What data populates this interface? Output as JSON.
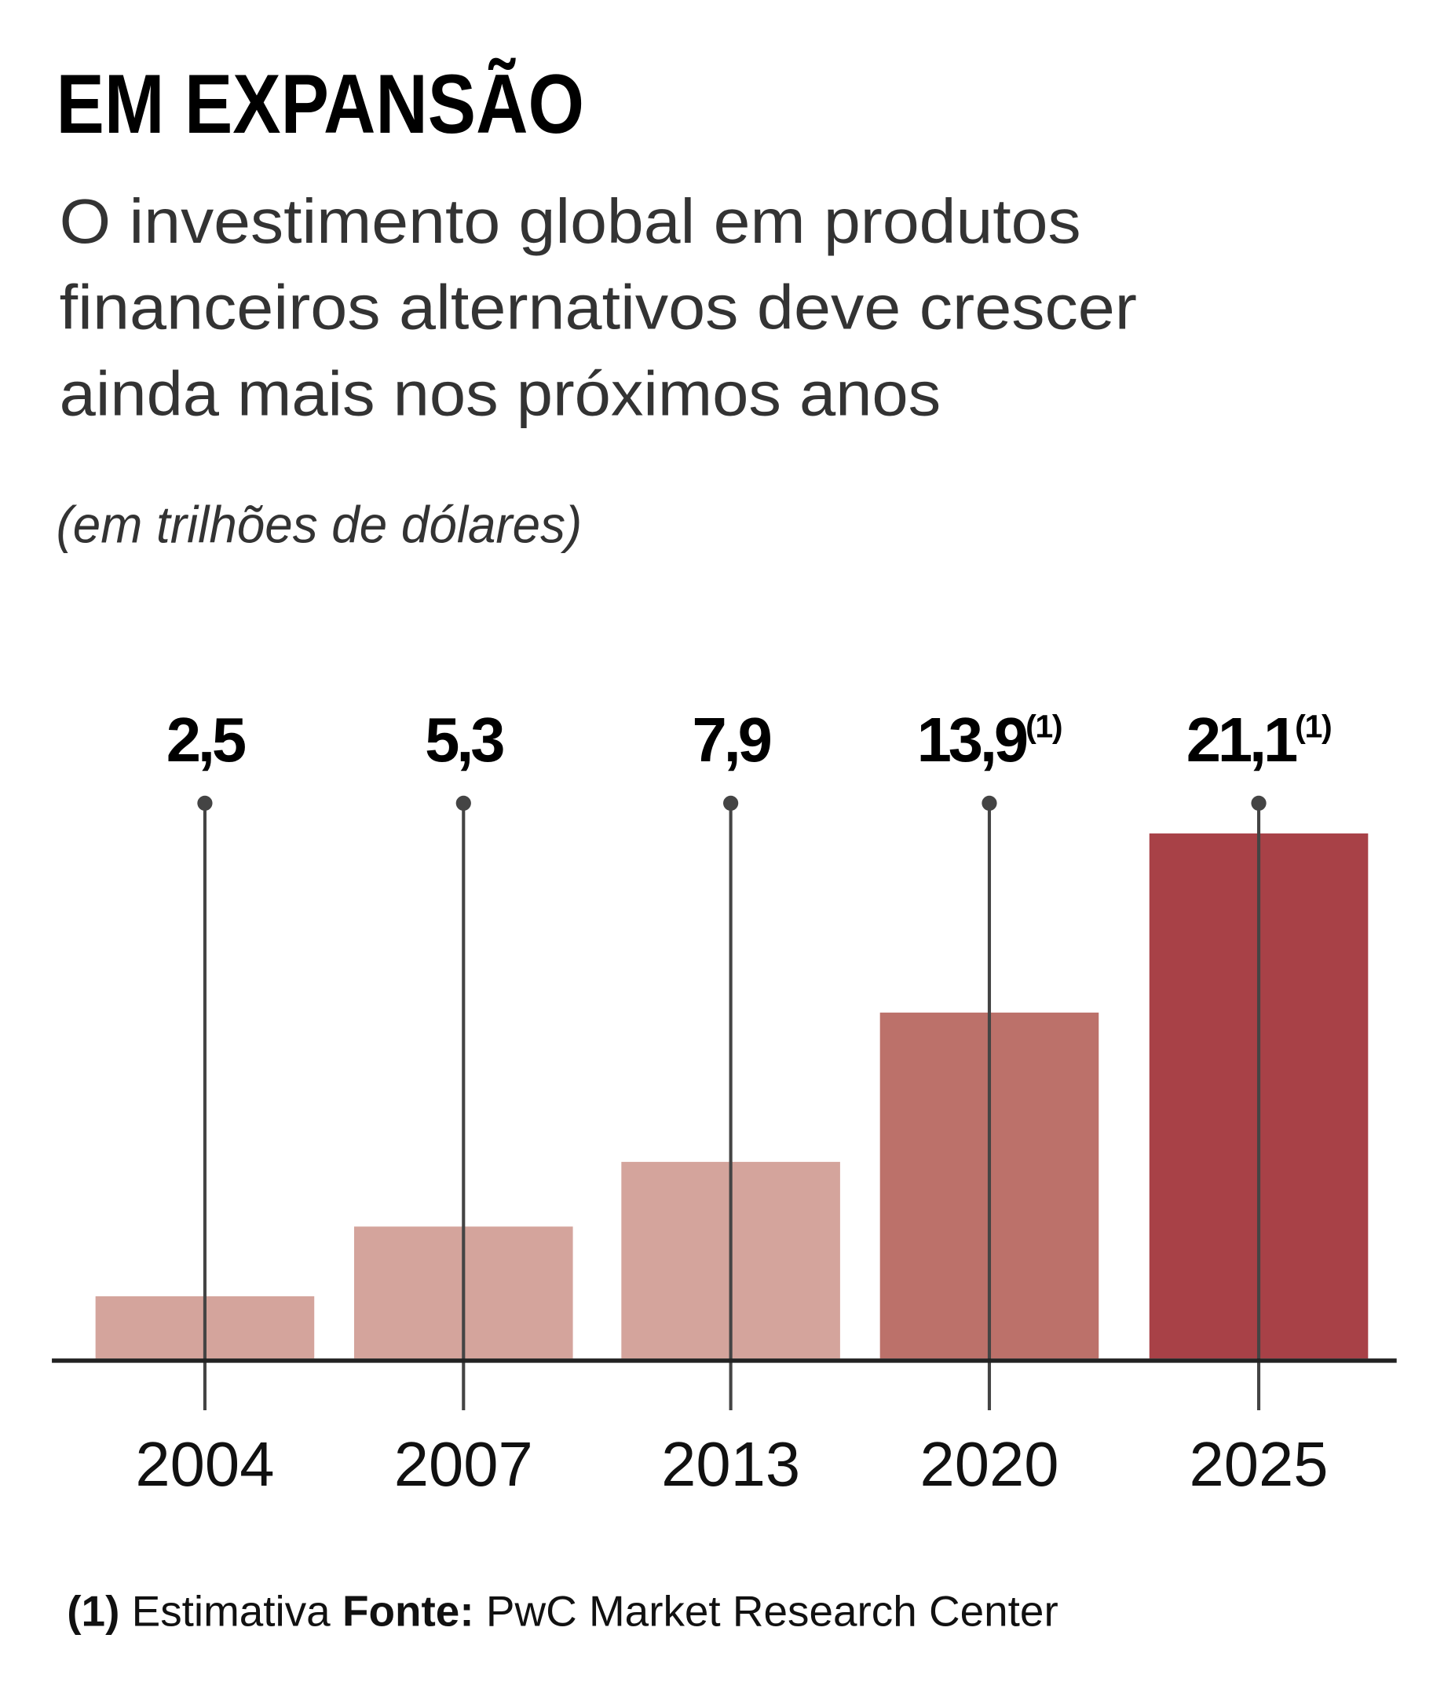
{
  "chart_data": {
    "type": "bar",
    "title": "EM EXPANSÃO",
    "subtitle": [
      "O investimento global em produtos",
      "financeiros alternativos deve crescer",
      "ainda mais nos próximos anos"
    ],
    "unit_label": "(em trilhões de dólares)",
    "categories": [
      "2004",
      "2007",
      "2013",
      "2020",
      "2025"
    ],
    "values": [
      2.5,
      5.3,
      7.9,
      13.9,
      21.1
    ],
    "value_labels": [
      "2,5",
      "5,3",
      "7,9",
      "13,9",
      "21,1"
    ],
    "value_notes": [
      null,
      null,
      null,
      "(1)",
      "(1)"
    ],
    "colors": [
      "#d4a49c",
      "#d4a49c",
      "#d4a49c",
      "#bc716a",
      "#a84147"
    ],
    "footnote": {
      "marker": "(1)",
      "text": "Estimativa",
      "source_label": "Fonte:",
      "source": "PwC Market Research Center"
    }
  }
}
